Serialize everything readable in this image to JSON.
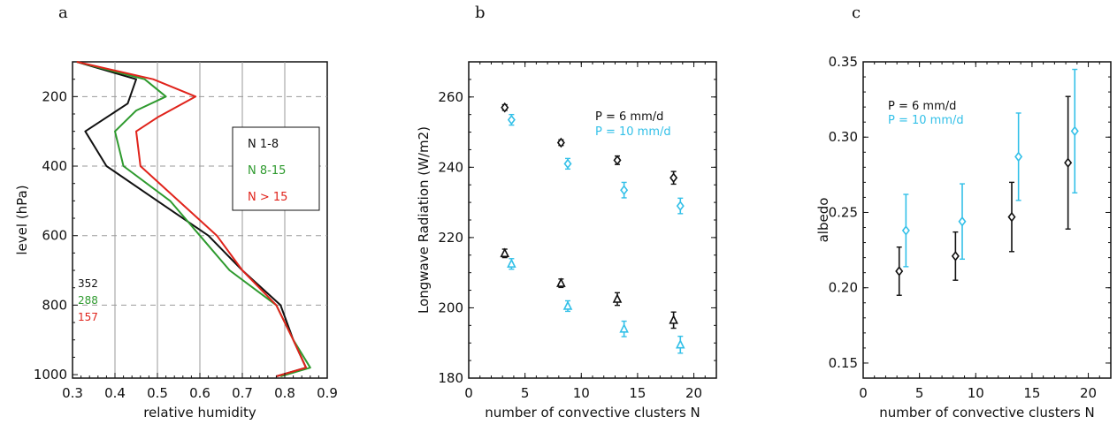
{
  "panels": [
    {
      "letter": "a"
    },
    {
      "letter": "b"
    },
    {
      "letter": "c"
    }
  ],
  "colors": {
    "black": "#111111",
    "green": "#2e9a2e",
    "red": "#e0231b",
    "cyan": "#33c0e8",
    "grid": "#9a9a9a"
  },
  "chart_data": [
    {
      "type": "line",
      "panel": "a",
      "xlabel": "relative humidity",
      "ylabel": "level (hPa)",
      "xlim": [
        0.3,
        0.9
      ],
      "ylim": [
        1010,
        100
      ],
      "y_reversed": true,
      "xticks": [
        0.3,
        0.4,
        0.5,
        0.6,
        0.7,
        0.8,
        0.9
      ],
      "xtick_labels": [
        "0.3",
        "0.4",
        "0.5",
        "0.6",
        "0.7",
        "0.8",
        "0.9"
      ],
      "yticks": [
        200,
        400,
        600,
        800,
        1000
      ],
      "ytick_labels": [
        "200",
        "400",
        "600",
        "800",
        "1000"
      ],
      "grid": "vertical solid at 0.4–0.8, horizontal dashed at 200–800",
      "legend": {
        "entries": [
          "N 1-8",
          "N 8-15",
          "N > 15"
        ],
        "placement": "right"
      },
      "counts": [
        "352",
        "288",
        "157"
      ],
      "series": [
        {
          "name": "N 1-8",
          "color": "black",
          "points": [
            [
              0.31,
              100
            ],
            [
              0.45,
              150
            ],
            [
              0.43,
              220
            ],
            [
              0.33,
              300
            ],
            [
              0.38,
              400
            ],
            [
              0.5,
              500
            ],
            [
              0.62,
              600
            ],
            [
              0.7,
              700
            ],
            [
              0.79,
              800
            ],
            [
              0.82,
              900
            ],
            [
              0.85,
              980
            ],
            [
              0.78,
              1005
            ]
          ]
        },
        {
          "name": "N 8-15",
          "color": "green",
          "points": [
            [
              0.31,
              100
            ],
            [
              0.47,
              150
            ],
            [
              0.52,
              200
            ],
            [
              0.45,
              240
            ],
            [
              0.4,
              300
            ],
            [
              0.42,
              400
            ],
            [
              0.53,
              500
            ],
            [
              0.6,
              600
            ],
            [
              0.67,
              700
            ],
            [
              0.78,
              800
            ],
            [
              0.82,
              900
            ],
            [
              0.86,
              980
            ],
            [
              0.79,
              1005
            ]
          ]
        },
        {
          "name": "N > 15",
          "color": "red",
          "points": [
            [
              0.31,
              100
            ],
            [
              0.49,
              150
            ],
            [
              0.59,
              200
            ],
            [
              0.5,
              260
            ],
            [
              0.45,
              300
            ],
            [
              0.46,
              400
            ],
            [
              0.55,
              500
            ],
            [
              0.64,
              600
            ],
            [
              0.7,
              700
            ],
            [
              0.78,
              800
            ],
            [
              0.82,
              900
            ],
            [
              0.85,
              980
            ],
            [
              0.78,
              1005
            ]
          ]
        }
      ]
    },
    {
      "type": "scatter",
      "panel": "b",
      "xlabel": "number of convective clusters N",
      "ylabel": "Longwave Radiation (W/m2)",
      "xlim": [
        0,
        22
      ],
      "ylim": [
        180,
        270
      ],
      "xticks": [
        0,
        5,
        10,
        15,
        20
      ],
      "xtick_labels": [
        "0",
        "5",
        "10",
        "15",
        "20"
      ],
      "yticks": [
        180,
        200,
        220,
        240,
        260
      ],
      "ytick_labels": [
        "180",
        "200",
        "220",
        "240",
        "260"
      ],
      "legend": {
        "entries": [
          "P = 6 mm/d",
          "P = 10 mm/d"
        ],
        "placement": "top-right"
      },
      "series": [
        {
          "name": "P = 6 mm/d",
          "color": "black",
          "marker": "diamond",
          "points": [
            [
              3.2,
              257,
              0.8
            ],
            [
              8.2,
              247,
              0.8
            ],
            [
              13.2,
              242,
              1.2
            ],
            [
              18.2,
              237,
              1.8
            ]
          ]
        },
        {
          "name": "P = 6 mm/d",
          "color": "black",
          "marker": "triangle",
          "points": [
            [
              3.2,
              215.5,
              1.2
            ],
            [
              8.2,
              207,
              1.2
            ],
            [
              13.2,
              202.5,
              1.8
            ],
            [
              18.2,
              196.5,
              2.3
            ]
          ]
        },
        {
          "name": "P = 10 mm/d",
          "color": "cyan",
          "marker": "diamond",
          "points": [
            [
              3.8,
              253.5,
              1.5
            ],
            [
              8.8,
              241,
              1.5
            ],
            [
              13.8,
              233.5,
              2.2
            ],
            [
              18.8,
              229,
              2.2
            ]
          ]
        },
        {
          "name": "P = 10 mm/d",
          "color": "cyan",
          "marker": "triangle",
          "points": [
            [
              3.8,
              212.5,
              1.5
            ],
            [
              8.8,
              200.5,
              1.5
            ],
            [
              13.8,
              194,
              2.2
            ],
            [
              18.8,
              189.5,
              2.4
            ]
          ]
        }
      ]
    },
    {
      "type": "scatter",
      "panel": "c",
      "xlabel": "number of convective clusters N",
      "ylabel": "albedo",
      "xlim": [
        0,
        22
      ],
      "ylim": [
        0.14,
        0.35
      ],
      "xticks": [
        0,
        5,
        10,
        15,
        20
      ],
      "xtick_labels": [
        "0",
        "5",
        "10",
        "15",
        "20"
      ],
      "yticks": [
        0.15,
        0.2,
        0.25,
        0.3,
        0.35
      ],
      "ytick_labels": [
        "0.15",
        "0.20",
        "0.25",
        "0.30",
        "0.35"
      ],
      "legend": {
        "entries": [
          "P = 6 mm/d",
          "P = 10 mm/d"
        ],
        "placement": "top-left"
      },
      "series": [
        {
          "name": "P = 6 mm/d",
          "color": "black",
          "marker": "diamond",
          "points": [
            [
              3.2,
              0.211,
              0.016
            ],
            [
              8.2,
              0.221,
              0.016
            ],
            [
              13.2,
              0.247,
              0.023
            ],
            [
              18.2,
              0.283,
              0.044
            ]
          ]
        },
        {
          "name": "P = 10 mm/d",
          "color": "cyan",
          "marker": "diamond",
          "points": [
            [
              3.8,
              0.238,
              0.024
            ],
            [
              8.8,
              0.244,
              0.025
            ],
            [
              13.8,
              0.287,
              0.029
            ],
            [
              18.8,
              0.304,
              0.041
            ]
          ]
        }
      ]
    }
  ]
}
